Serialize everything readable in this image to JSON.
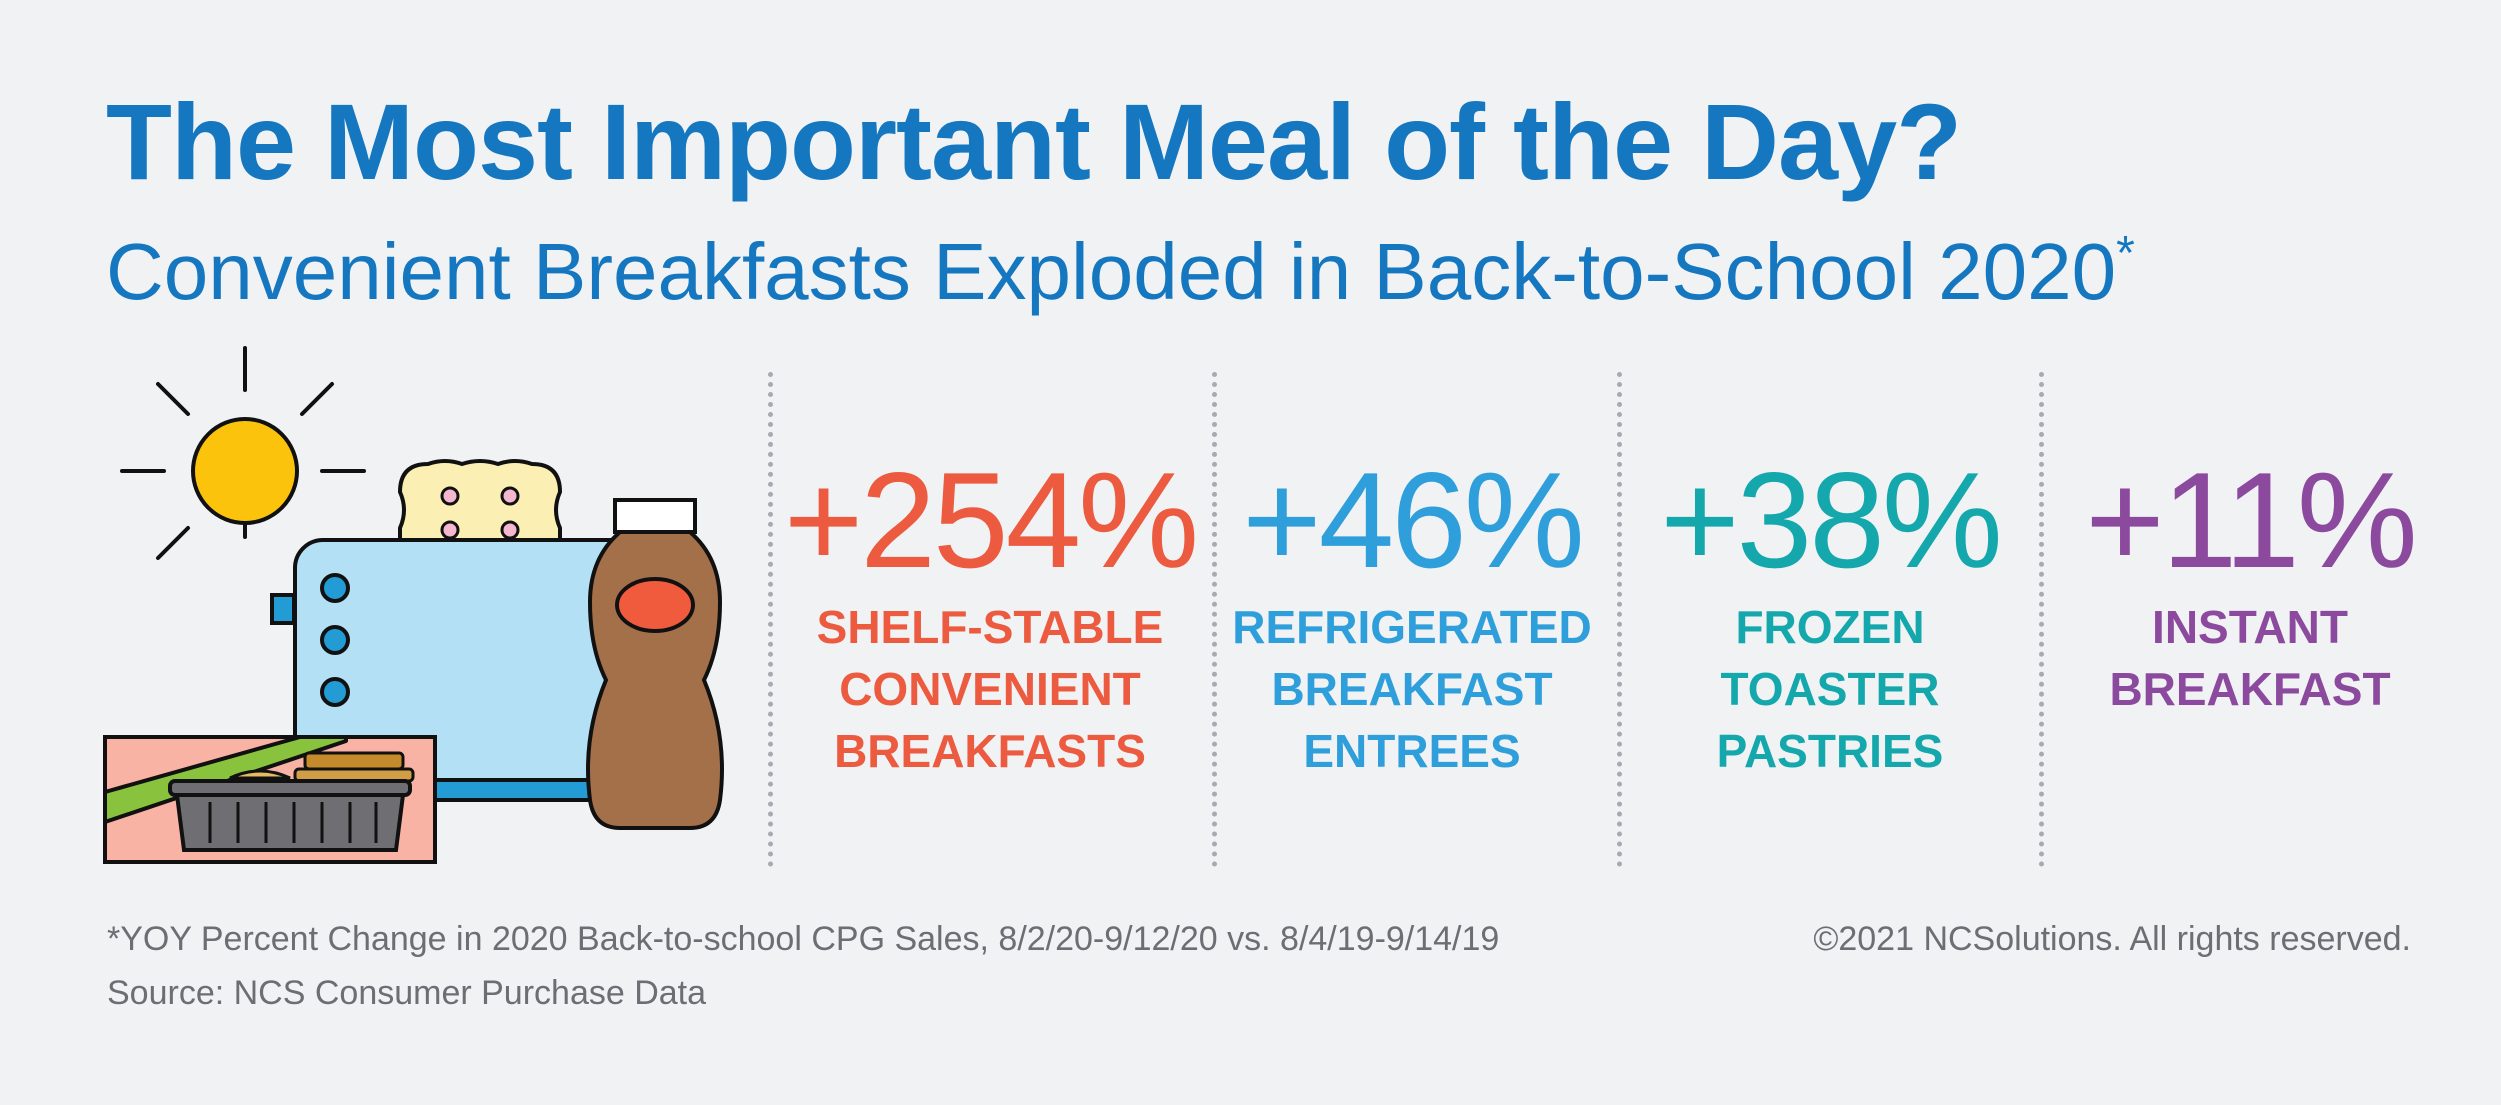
{
  "header": {
    "title": "The Most Important Meal of the Day?",
    "subtitle": "Convenient Breakfasts Exploded in Back-to-School 2020",
    "subtitle_marker": "*"
  },
  "illustration": {
    "icons": [
      "sun-icon",
      "toaster-icon",
      "toast-icon",
      "coffee-bottle-icon",
      "meal-tray-icon"
    ]
  },
  "stats": [
    {
      "value": "+254%",
      "label_lines": [
        "SHELF-STABLE",
        "CONVENIENT",
        "BREAKFASTS"
      ],
      "color": "#ec5a3f"
    },
    {
      "value": "+46%",
      "label_lines": [
        "REFRIGERATED",
        "BREAKFAST",
        "ENTREES"
      ],
      "color": "#2f9fdb"
    },
    {
      "value": "+38%",
      "label_lines": [
        "FROZEN",
        "TOASTER",
        "PASTRIES"
      ],
      "color": "#14a8ad"
    },
    {
      "value": "+11%",
      "label_lines": [
        "INSTANT",
        "BREAKFAST"
      ],
      "color": "#8b4a9d"
    }
  ],
  "footer": {
    "note": "*YOY Percent Change in 2020 Back-to-school CPG Sales, 8/2/20-9/12/20 vs. 8/4/19-9/14/19",
    "source": "Source: NCS Consumer Purchase Data",
    "copyright": "©2021 NCSolutions. All rights reserved."
  },
  "colors": {
    "background": "#f1f2f4",
    "title": "#1577bf",
    "footer_text": "#6c6e73",
    "divider": "#a8aab0"
  }
}
